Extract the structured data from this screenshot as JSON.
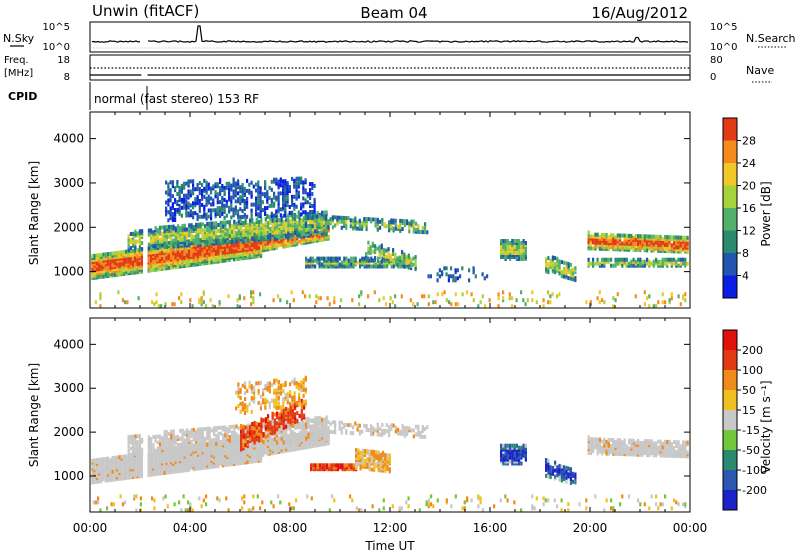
{
  "header": {
    "station": "Unwin (fitACF)",
    "beam": "Beam 04",
    "date": "16/Aug/2012"
  },
  "nsky_panel": {
    "left_label": "N.Sky",
    "right_label": "N.Search",
    "left_ticks": [
      "10^5",
      "10^0"
    ],
    "right_ticks": [
      "10^5",
      "10^0"
    ]
  },
  "freq_panel": {
    "left_label_1": "Freq.",
    "left_label_2": "[MHz]",
    "right_label": "Nave",
    "left_ticks": [
      "18",
      "8"
    ],
    "right_ticks": [
      "80",
      "0"
    ]
  },
  "cpid": {
    "label": "CPID",
    "text": "normal (fast stereo) 153 RF"
  },
  "chart_data": [
    {
      "type": "heatmap",
      "name": "power",
      "ylabel": "Slant Range [km]",
      "ylim": [
        180,
        4600
      ],
      "yticks": [
        "1000",
        "2000",
        "3000",
        "4000"
      ],
      "colorbar": {
        "label": "Power [dB]",
        "ticks": [
          "4",
          "8",
          "12",
          "16",
          "20",
          "24",
          "28"
        ],
        "colors": [
          "#0a1ee6",
          "#2255b0",
          "#2a8a6e",
          "#52b06a",
          "#a6d23a",
          "#f0c828",
          "#f58a1e",
          "#e23a14"
        ]
      }
    },
    {
      "type": "heatmap",
      "name": "velocity",
      "ylabel": "Slant Range [km]",
      "ylim": [
        180,
        4600
      ],
      "yticks": [
        "1000",
        "2000",
        "3000",
        "4000"
      ],
      "colorbar": {
        "label": "Velocity [m s⁻¹]",
        "ticks": [
          "200",
          "100",
          "50",
          "15",
          "-15",
          "-50",
          "-100",
          "-200"
        ],
        "colors": [
          "#1a22c8",
          "#2a58b0",
          "#2a8a6e",
          "#72c83a",
          "#c8c8c8",
          "#f0c020",
          "#f08a18",
          "#e23a14",
          "#e0100a"
        ]
      }
    }
  ],
  "xaxis": {
    "label": "Time UT",
    "ticks": [
      "00:00",
      "04:00",
      "08:00",
      "12:00",
      "16:00",
      "20:00",
      "00:00"
    ]
  }
}
